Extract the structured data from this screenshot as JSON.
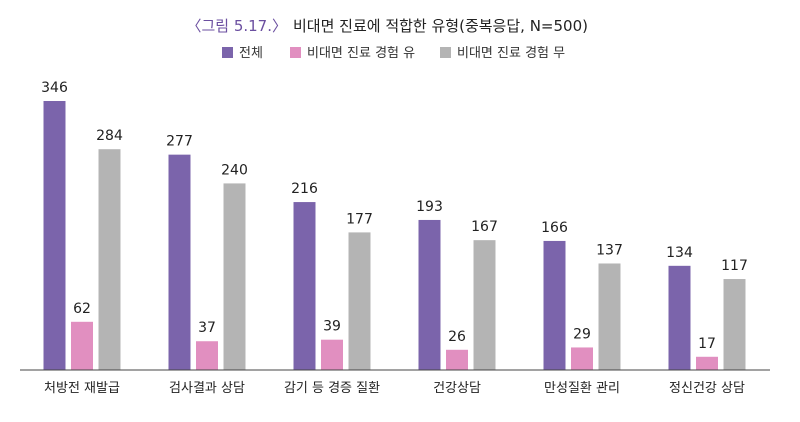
{
  "chart_data": {
    "type": "bar",
    "title_prefix": "〈그림 5.17.〉",
    "title": "비대면 진료에 적합한 유형(중복응답, N=500)",
    "categories": [
      "처방전 재발급",
      "검사결과 상담",
      "감기 등 경증 질환",
      "건강상담",
      "만성질환 관리",
      "정신건강 상담"
    ],
    "series": [
      {
        "name": "전체",
        "color": "#7b64ab",
        "values": [
          346,
          277,
          216,
          193,
          166,
          134
        ]
      },
      {
        "name": "비대면 진료 경험 유",
        "color": "#e18fc0",
        "values": [
          62,
          37,
          39,
          26,
          29,
          17
        ]
      },
      {
        "name": "비대면 진료 경험 무",
        "color": "#b4b4b4",
        "values": [
          284,
          240,
          177,
          167,
          137,
          117
        ]
      }
    ],
    "xlabel": "",
    "ylabel": "",
    "ylim": [
      0,
      346
    ],
    "grid": false,
    "legend": "top-center",
    "title_color": "#6b4fa0"
  }
}
